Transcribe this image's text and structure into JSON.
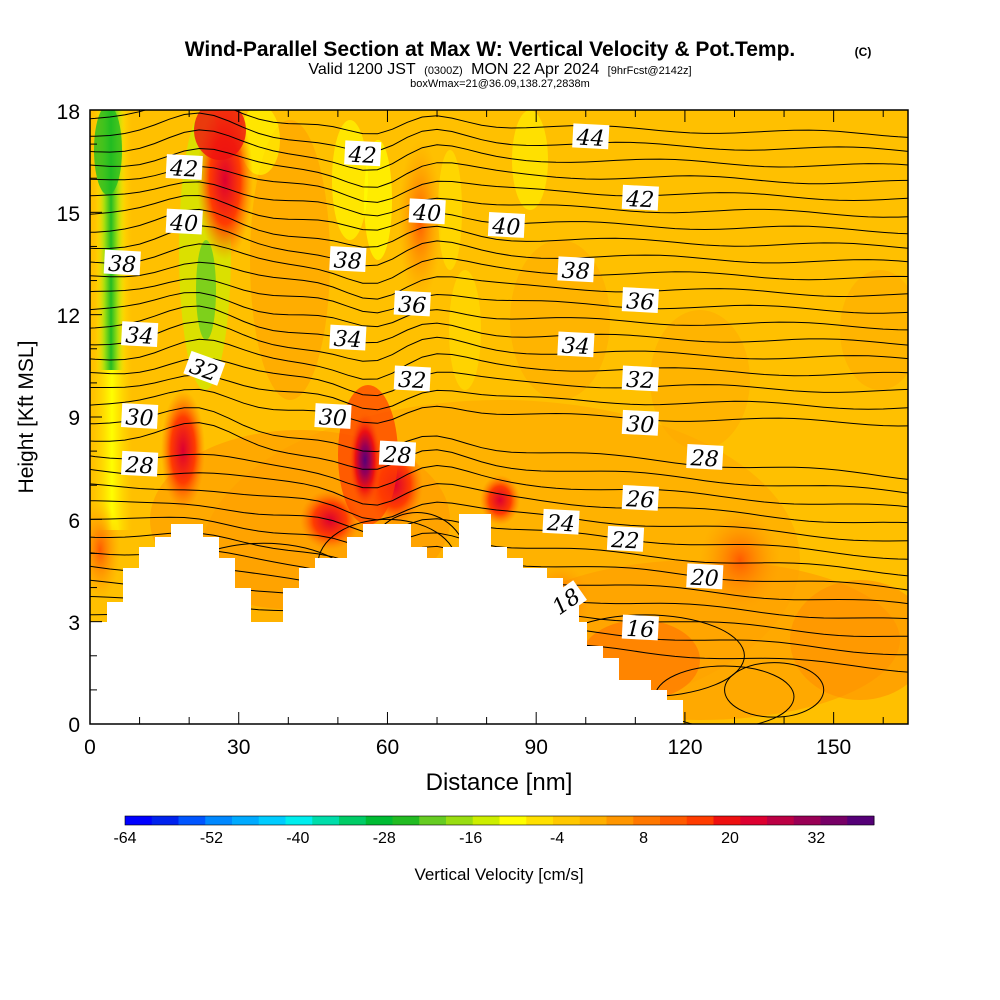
{
  "chart_data": {
    "type": "heatmap",
    "title": "Wind-Parallel Section at Max W: Vertical Velocity & Pot.Temp.",
    "title_mark": "(C)",
    "subtitle_main": "Valid 1200 JST",
    "subtitle_z": "(0300Z)",
    "subtitle_date": "MON 22 Apr 2024",
    "subtitle_fcst": "[9hrFcst@2142z]",
    "subtitle2": "boxWmax=21@36.09,138.27,2838m",
    "xlabel": "Distance [nm]",
    "ylabel": "Height [Kft MSL]",
    "xlim": [
      0,
      165
    ],
    "ylim": [
      0,
      18
    ],
    "xticks": [
      "0",
      "30",
      "60",
      "90",
      "120",
      "150"
    ],
    "yticks": [
      "0",
      "3",
      "6",
      "9",
      "12",
      "15",
      "18"
    ],
    "colorbar": {
      "label": "Vertical Velocity [cm/s]",
      "range": [
        -64,
        40
      ],
      "tick_labels": [
        "-64",
        "-52",
        "-40",
        "-28",
        "-16",
        "-4",
        "8",
        "20",
        "32"
      ],
      "colors": [
        "#0000ff",
        "#0022ee",
        "#0055ff",
        "#0088ff",
        "#00aaff",
        "#00ccff",
        "#00eeee",
        "#00ddaa",
        "#00cc66",
        "#00bb33",
        "#22bb22",
        "#66cc22",
        "#99dd11",
        "#ccee00",
        "#ffff00",
        "#ffe000",
        "#ffc800",
        "#ffb000",
        "#ff9600",
        "#ff7800",
        "#ff5a00",
        "#ff3c00",
        "#ee1010",
        "#dd0030",
        "#bb0044",
        "#990055",
        "#770066",
        "#550077"
      ]
    },
    "theta_contour_labels": [
      {
        "value": "42",
        "x": 19,
        "y": 16.3
      },
      {
        "value": "42",
        "x": 55,
        "y": 16.7
      },
      {
        "value": "44",
        "x": 101,
        "y": 17.2
      },
      {
        "value": "40",
        "x": 19,
        "y": 14.7
      },
      {
        "value": "40",
        "x": 68,
        "y": 15.0
      },
      {
        "value": "40",
        "x": 84,
        "y": 14.6
      },
      {
        "value": "42",
        "x": 111,
        "y": 15.4
      },
      {
        "value": "38",
        "x": 6.5,
        "y": 13.5
      },
      {
        "value": "38",
        "x": 52,
        "y": 13.6
      },
      {
        "value": "38",
        "x": 98,
        "y": 13.3
      },
      {
        "value": "36",
        "x": 65,
        "y": 12.3
      },
      {
        "value": "36",
        "x": 111,
        "y": 12.4
      },
      {
        "value": "34",
        "x": 10,
        "y": 11.4
      },
      {
        "value": "34",
        "x": 52,
        "y": 11.3
      },
      {
        "value": "34",
        "x": 98,
        "y": 11.1
      },
      {
        "value": "32",
        "x": 23,
        "y": 10.4
      },
      {
        "value": "32",
        "x": 65,
        "y": 10.1
      },
      {
        "value": "32",
        "x": 111,
        "y": 10.1
      },
      {
        "value": "30",
        "x": 10,
        "y": 9.0
      },
      {
        "value": "30",
        "x": 49,
        "y": 9.0
      },
      {
        "value": "30",
        "x": 111,
        "y": 8.8
      },
      {
        "value": "28",
        "x": 10,
        "y": 7.6
      },
      {
        "value": "28",
        "x": 62,
        "y": 7.9
      },
      {
        "value": "28",
        "x": 124,
        "y": 7.8
      },
      {
        "value": "26",
        "x": 111,
        "y": 6.6
      },
      {
        "value": "24",
        "x": 95,
        "y": 5.9
      },
      {
        "value": "22",
        "x": 108,
        "y": 5.4
      },
      {
        "value": "20",
        "x": 124,
        "y": 4.3
      },
      {
        "value": "18",
        "x": 96,
        "y": 3.6
      },
      {
        "value": "16",
        "x": 111,
        "y": 2.8
      }
    ],
    "note": "Filled contours of vertical velocity with potential temperature contour lines; white region is terrain."
  }
}
